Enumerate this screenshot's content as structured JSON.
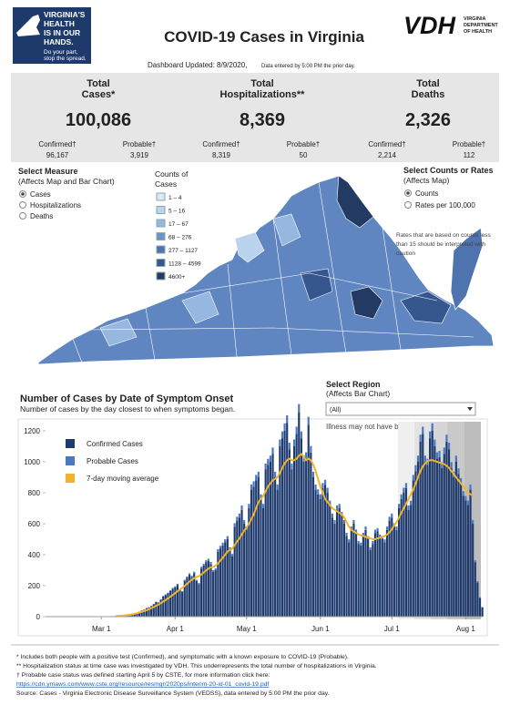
{
  "header": {
    "logo_lines": [
      "VIRGINIA'S",
      "HEALTH",
      "IS IN OUR",
      "HANDS."
    ],
    "logo_tagline": [
      "Do your part,",
      "stop the spread."
    ],
    "title": "COVID-19 Cases in Virginia",
    "agency_abbr": "VDH",
    "agency_name": [
      "VIRGINIA",
      "DEPARTMENT",
      "OF HEALTH"
    ],
    "updated": "Dashboard Updated: 8/9/2020,",
    "updated_note": "Data entered by 5:00 PM the prior day."
  },
  "kpis": [
    {
      "title": [
        "Total",
        "Cases*"
      ],
      "value": "100,086",
      "parts": [
        {
          "label": "Confirmed†",
          "value": "96,167"
        },
        {
          "label": "Probable†",
          "value": "3,919"
        }
      ]
    },
    {
      "title": [
        "Total",
        "Hospitalizations**"
      ],
      "value": "8,369",
      "parts": [
        {
          "label": "Confirmed†",
          "value": "8,319"
        },
        {
          "label": "Probable†",
          "value": "50"
        }
      ]
    },
    {
      "title": [
        "Total",
        "Deaths"
      ],
      "value": "2,326",
      "parts": [
        {
          "label": "Confirmed†",
          "value": "2,214"
        },
        {
          "label": "Probable†",
          "value": "112"
        }
      ]
    }
  ],
  "measure": {
    "title": "Select Measure",
    "subtitle": "(Affects Map and Bar Chart)",
    "options": [
      "Cases",
      "Hospitalizations",
      "Deaths"
    ],
    "selected": 0
  },
  "map_legend": {
    "title": [
      "Counts of",
      "Cases"
    ],
    "bins": [
      {
        "label": "1 – 4",
        "color": "#dbe8f6"
      },
      {
        "label": "5 – 16",
        "color": "#bcd3ee"
      },
      {
        "label": "17 – 67",
        "color": "#95b7e0"
      },
      {
        "label": "68 – 276",
        "color": "#6b93c9"
      },
      {
        "label": "277 – 1127",
        "color": "#4d74ae"
      },
      {
        "label": "1128 – 4599",
        "color": "#36578e"
      },
      {
        "label": "4600+",
        "color": "#233a63"
      }
    ]
  },
  "rates": {
    "title": "Select Counts or Rates",
    "subtitle": "(Affects Map)",
    "options": [
      "Counts",
      "Rates per 100,000"
    ],
    "selected": 0,
    "note": [
      "Rates that are based on counts less",
      "than 15 should be interpreted with",
      "caution"
    ]
  },
  "region": {
    "title": "Select Region",
    "subtitle": "(Affects Bar Chart)",
    "value": "(All)",
    "note": "Illness may not have been reported yet."
  },
  "chart_data": {
    "type": "bar",
    "stacked": true,
    "title": "Number of Cases by Date of Symptom Onset",
    "subtitle": "Number of cases by the day closest to when symptoms began.",
    "categories": [
      null,
      null,
      null,
      null,
      null,
      null,
      null,
      null,
      null,
      null,
      null,
      null,
      null,
      null,
      null,
      "Mar 1",
      null,
      null,
      null,
      null,
      null,
      null,
      null,
      null,
      null,
      null,
      null,
      null,
      null,
      null,
      null,
      null,
      null,
      null,
      null,
      null,
      null,
      null,
      null,
      null,
      null,
      null,
      null,
      null,
      null,
      null,
      "Apr 1",
      null,
      null,
      null,
      null,
      null,
      null,
      null,
      null,
      null,
      null,
      null,
      null,
      null,
      null,
      null,
      null,
      null,
      null,
      null,
      null,
      null,
      null,
      null,
      null,
      null,
      null,
      null,
      null,
      null,
      "May 1",
      null,
      null,
      null,
      null,
      null,
      null,
      null,
      null,
      null,
      null,
      null,
      null,
      null,
      null,
      null,
      null,
      null,
      null,
      null,
      null,
      null,
      null,
      null,
      null,
      null,
      null,
      null,
      null,
      null,
      null,
      "Jun 1",
      null,
      null,
      null,
      null,
      null,
      null,
      null,
      null,
      null,
      null,
      null,
      null,
      null,
      null,
      null,
      null,
      null,
      null,
      null,
      null,
      null,
      null,
      null,
      null,
      null,
      null,
      null,
      null,
      null,
      "Jul 1",
      null,
      null,
      null,
      null,
      null,
      null,
      null,
      null,
      null,
      null,
      null,
      null,
      null,
      null,
      null,
      null,
      null,
      null,
      null,
      null,
      null,
      null,
      null,
      null,
      null,
      null,
      null,
      null,
      null,
      null,
      "Aug 1",
      null,
      null,
      null,
      null,
      null,
      null,
      null
    ],
    "series": [
      {
        "name": "Confirmed Cases",
        "color": "#1f3b6e",
        "values": [
          0,
          0,
          0,
          0,
          0,
          0,
          0,
          0,
          0,
          0,
          0,
          0,
          0,
          0,
          0,
          1,
          0,
          2,
          1,
          3,
          2,
          4,
          3,
          5,
          6,
          8,
          10,
          15,
          14,
          20,
          25,
          32,
          40,
          45,
          55,
          60,
          68,
          80,
          95,
          90,
          110,
          130,
          140,
          150,
          165,
          180,
          190,
          205,
          170,
          160,
          230,
          250,
          270,
          255,
          280,
          230,
          210,
          310,
          330,
          350,
          360,
          340,
          290,
          300,
          420,
          440,
          460,
          480,
          500,
          430,
          390,
          580,
          620,
          640,
          690,
          600,
          560,
          700,
          820,
          840,
          880,
          900,
          760,
          700,
          950,
          980,
          1000,
          1050,
          900,
          820,
          1100,
          1150,
          1200,
          1250,
          1080,
          950,
          1100,
          1180,
          1320,
          1150,
          1000,
          1020,
          1240,
          1060,
          900,
          820,
          790,
          760,
          830,
          850,
          800,
          720,
          640,
          600,
          690,
          700,
          650,
          600,
          520,
          480,
          560,
          600,
          540,
          470,
          460,
          520,
          560,
          500,
          430,
          470,
          540,
          550,
          510,
          500,
          480,
          560,
          620,
          640,
          580,
          560,
          700,
          760,
          800,
          830,
          690,
          720,
          880,
          940,
          1000,
          1130,
          1180,
          1000,
          980,
          1150,
          1200,
          1100,
          1020,
          1030,
          960,
          1050,
          1130,
          1080,
          960,
          900,
          1000,
          920,
          860,
          780,
          750,
          720,
          820,
          600,
          350,
          220,
          120,
          60
        ]
      },
      {
        "name": "Probable Cases",
        "color": "#4b78c2",
        "values": [
          0,
          0,
          0,
          0,
          0,
          0,
          0,
          0,
          0,
          0,
          0,
          0,
          0,
          0,
          0,
          0,
          0,
          0,
          0,
          0,
          0,
          0,
          0,
          0,
          0,
          0,
          0,
          0,
          0,
          0,
          0,
          0,
          0,
          0,
          0,
          1,
          1,
          2,
          2,
          3,
          3,
          4,
          4,
          5,
          5,
          6,
          6,
          7,
          5,
          5,
          8,
          9,
          10,
          9,
          10,
          8,
          8,
          12,
          12,
          14,
          14,
          13,
          11,
          12,
          16,
          17,
          18,
          19,
          20,
          17,
          15,
          23,
          25,
          26,
          28,
          24,
          22,
          28,
          33,
          34,
          35,
          36,
          30,
          28,
          38,
          39,
          40,
          42,
          36,
          33,
          44,
          46,
          48,
          50,
          43,
          38,
          44,
          47,
          53,
          46,
          40,
          41,
          50,
          42,
          36,
          33,
          32,
          30,
          33,
          34,
          32,
          29,
          26,
          24,
          28,
          28,
          26,
          24,
          21,
          19,
          22,
          24,
          22,
          19,
          18,
          21,
          22,
          20,
          17,
          19,
          22,
          22,
          20,
          20,
          19,
          22,
          25,
          26,
          23,
          22,
          28,
          30,
          32,
          33,
          28,
          29,
          35,
          38,
          40,
          45,
          47,
          40,
          39,
          46,
          48,
          44,
          41,
          41,
          38,
          42,
          45,
          43,
          38,
          36,
          40,
          37,
          34,
          31,
          30,
          29,
          33,
          24,
          14,
          9,
          5,
          2
        ]
      },
      {
        "name": "7-day moving average",
        "type": "line",
        "color": "#f0b428",
        "values": [
          null,
          null,
          null,
          null,
          null,
          null,
          null,
          null,
          null,
          null,
          null,
          null,
          null,
          null,
          null,
          null,
          null,
          null,
          null,
          null,
          null,
          3,
          4,
          5,
          6,
          8,
          10,
          12,
          15,
          18,
          22,
          26,
          31,
          36,
          42,
          48,
          55,
          62,
          70,
          78,
          87,
          97,
          107,
          118,
          129,
          140,
          152,
          165,
          175,
          185,
          198,
          212,
          226,
          238,
          248,
          255,
          262,
          272,
          285,
          298,
          310,
          318,
          322,
          328,
          345,
          362,
          380,
          400,
          420,
          430,
          440,
          462,
          485,
          505,
          530,
          555,
          575,
          600,
          630,
          660,
          700,
          740,
          760,
          780,
          810,
          840,
          860,
          880,
          890,
          900,
          930,
          960,
          990,
          1010,
          1020,
          1010,
          1010,
          1020,
          1040,
          1050,
          1030,
          1010,
          1020,
          1010,
          980,
          940,
          890,
          840,
          800,
          760,
          740,
          720,
          700,
          690,
          680,
          670,
          660,
          640,
          610,
          580,
          560,
          550,
          540,
          530,
          525,
          520,
          515,
          510,
          505,
          500,
          500,
          505,
          510,
          515,
          520,
          530,
          545,
          565,
          590,
          610,
          640,
          670,
          700,
          730,
          760,
          790,
          820,
          860,
          900,
          940,
          970,
          990,
          1005,
          1010,
          1010,
          1005,
          1000,
          995,
          990,
          985,
          975,
          960,
          940,
          920,
          900,
          880,
          860,
          840,
          820,
          800,
          790,
          780,
          null,
          null,
          null,
          null
        ]
      }
    ],
    "ylim": [
      0,
      1300
    ],
    "yticks": [
      0,
      200,
      400,
      600,
      800,
      1000,
      1200
    ],
    "grid": false
  },
  "footnotes": [
    "* Includes both people with a positive test (Confirmed), and symptomatic with a known exposure to COVID-19 (Probable).",
    "** Hospitalization status at time case was investigated by VDH. This underrepresents the total number of hospitalizations in Virginia.",
    "† Probable case status was defined starting April 5 by CSTE, for more information click here:",
    "https://cdn.ymaws.com/www.cste.org/resource/resmgr/2020ps/interim-20-id-01_covid-19.pdf",
    "Source:  Cases - Virginia Electronic Disease Surveillance System (VEDSS), data entered by 5:00 PM the prior day."
  ]
}
